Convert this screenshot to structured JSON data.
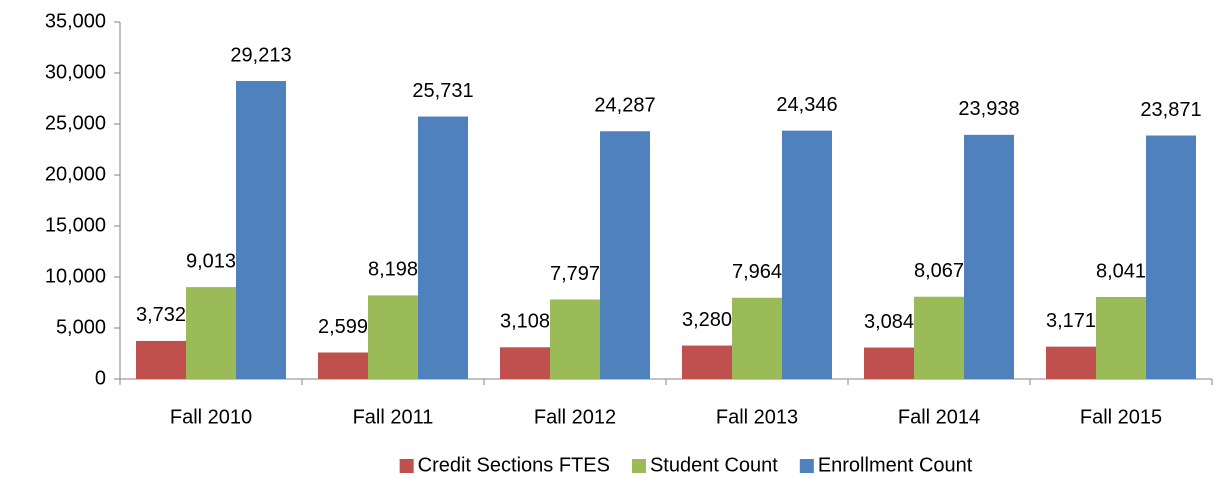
{
  "chart_data": {
    "type": "bar",
    "categories": [
      "Fall 2010",
      "Fall 2011",
      "Fall 2012",
      "Fall 2013",
      "Fall 2014",
      "Fall 2015"
    ],
    "series": [
      {
        "name": "Credit Sections FTES",
        "color": "#c0504d",
        "values": [
          3732,
          2599,
          3108,
          3280,
          3084,
          3171
        ],
        "value_labels": [
          "3,732",
          "2,599",
          "3,108",
          "3,280",
          "3,084",
          "3,171"
        ]
      },
      {
        "name": "Student Count",
        "color": "#9bbb59",
        "values": [
          9013,
          8198,
          7797,
          7964,
          8067,
          8041
        ],
        "value_labels": [
          "9,013",
          "8,198",
          "7,797",
          "7,964",
          "8,067",
          "8,041"
        ]
      },
      {
        "name": "Enrollment Count",
        "color": "#4f81bd",
        "values": [
          29213,
          25731,
          24287,
          24346,
          23938,
          23871
        ],
        "value_labels": [
          "29,213",
          "25,731",
          "24,287",
          "24,346",
          "23,938",
          "23,871"
        ]
      }
    ],
    "ylim": [
      0,
      35000
    ],
    "yticks": [
      0,
      {
        "value": 5000,
        "label": "5,000"
      },
      {
        "value": 10000,
        "label": "10,000"
      },
      {
        "value": 15000,
        "label": "15,000"
      },
      {
        "value": 20000,
        "label": "20,000"
      },
      {
        "value": 25000,
        "label": "25,000"
      },
      {
        "value": 30000,
        "label": "30,000"
      },
      {
        "value": 35000,
        "label": "35,000"
      }
    ],
    "grid": false,
    "legend": "bottom"
  }
}
